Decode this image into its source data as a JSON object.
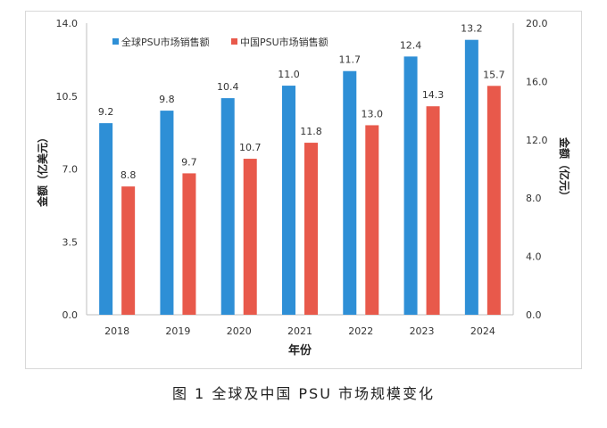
{
  "chart_data": {
    "type": "bar",
    "categories": [
      "2018",
      "2019",
      "2020",
      "2021",
      "2022",
      "2023",
      "2024"
    ],
    "series": [
      {
        "name": "全球PSU市场销售额",
        "axis": "left",
        "color": "#2e8fd6",
        "values": [
          9.2,
          9.8,
          10.4,
          11.0,
          11.7,
          12.4,
          13.2
        ],
        "labels": [
          "9.2",
          "9.8",
          "10.4",
          "11.0",
          "11.7",
          "12.4",
          "13.2"
        ]
      },
      {
        "name": "中国PSU市场销售额",
        "axis": "right",
        "color": "#e8594b",
        "values": [
          8.8,
          9.7,
          10.7,
          11.8,
          13.0,
          14.3,
          15.7
        ],
        "labels": [
          "8.8",
          "9.7",
          "10.7",
          "11.8",
          "13.0",
          "14.3",
          "15.7"
        ]
      }
    ],
    "xlabel": "年份",
    "ylabel_left": "金额（亿美元）",
    "ylabel_right": "金额（亿元）",
    "ylim_left": [
      0,
      14
    ],
    "ylim_right": [
      0,
      20
    ],
    "yticks_left": [
      "0.0",
      "3.5",
      "7.0",
      "10.5",
      "14.0"
    ],
    "yticks_right": [
      "0.0",
      "4.0",
      "8.0",
      "12.0",
      "16.0",
      "20.0"
    ],
    "legend_position": "top-left",
    "grid": false
  },
  "caption": "图 1   全球及中国 PSU 市场规模变化"
}
